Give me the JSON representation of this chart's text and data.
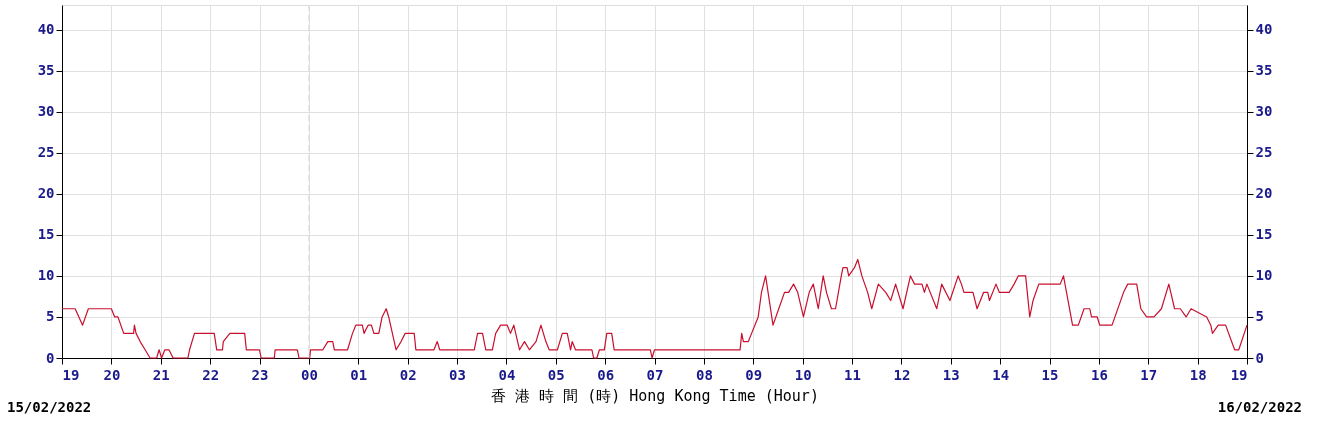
{
  "chart_data": {
    "type": "line",
    "xlabel": "香 港 時 間 (時)  Hong Kong Time (Hour)",
    "annotations": [
      "15/02/2022",
      "16/02/2022"
    ],
    "x": [
      "2022-02-15T19:00",
      "2022-02-15T19:16",
      "2022-02-15T19:25",
      "2022-02-15T19:32",
      "2022-02-15T20:00",
      "2022-02-15T20:04",
      "2022-02-15T20:08",
      "2022-02-15T20:15",
      "2022-02-15T20:27",
      "2022-02-15T20:28",
      "2022-02-15T20:30",
      "2022-02-15T20:35",
      "2022-02-15T20:41",
      "2022-02-15T20:47",
      "2022-02-15T20:55",
      "2022-02-15T20:58",
      "2022-02-15T21:01",
      "2022-02-15T21:05",
      "2022-02-15T21:10",
      "2022-02-15T21:15",
      "2022-02-15T21:33",
      "2022-02-15T21:35",
      "2022-02-15T21:41",
      "2022-02-15T22:05",
      "2022-02-15T22:08",
      "2022-02-15T22:15",
      "2022-02-15T22:16",
      "2022-02-15T22:24",
      "2022-02-15T22:42",
      "2022-02-15T22:44",
      "2022-02-15T23:00",
      "2022-02-15T23:02",
      "2022-02-15T23:18",
      "2022-02-15T23:19",
      "2022-02-15T23:46",
      "2022-02-15T23:48",
      "2022-02-16T00:01",
      "2022-02-16T00:02",
      "2022-02-16T00:17",
      "2022-02-16T00:23",
      "2022-02-16T00:29",
      "2022-02-16T00:31",
      "2022-02-16T00:47",
      "2022-02-16T00:53",
      "2022-02-16T00:57",
      "2022-02-16T01:05",
      "2022-02-16T01:07",
      "2022-02-16T01:12",
      "2022-02-16T01:16",
      "2022-02-16T01:19",
      "2022-02-16T01:25",
      "2022-02-16T01:29",
      "2022-02-16T01:34",
      "2022-02-16T01:37",
      "2022-02-16T01:46",
      "2022-02-16T01:52",
      "2022-02-16T01:57",
      "2022-02-16T02:08",
      "2022-02-16T02:10",
      "2022-02-16T02:32",
      "2022-02-16T02:36",
      "2022-02-16T02:39",
      "2022-02-16T03:21",
      "2022-02-16T03:25",
      "2022-02-16T03:31",
      "2022-02-16T03:35",
      "2022-02-16T03:43",
      "2022-02-16T03:47",
      "2022-02-16T03:53",
      "2022-02-16T04:01",
      "2022-02-16T04:05",
      "2022-02-16T04:09",
      "2022-02-16T04:16",
      "2022-02-16T04:22",
      "2022-02-16T04:28",
      "2022-02-16T04:36",
      "2022-02-16T04:42",
      "2022-02-16T04:48",
      "2022-02-16T04:52",
      "2022-02-16T05:02",
      "2022-02-16T05:08",
      "2022-02-16T05:14",
      "2022-02-16T05:18",
      "2022-02-16T05:20",
      "2022-02-16T05:24",
      "2022-02-16T05:44",
      "2022-02-16T05:46",
      "2022-02-16T05:50",
      "2022-02-16T05:53",
      "2022-02-16T05:59",
      "2022-02-16T06:02",
      "2022-02-16T06:08",
      "2022-02-16T06:11",
      "2022-02-16T06:55",
      "2022-02-16T06:57",
      "2022-02-16T07:00",
      "2022-02-16T08:44",
      "2022-02-16T08:46",
      "2022-02-16T08:48",
      "2022-02-16T08:54",
      "2022-02-16T08:58",
      "2022-02-16T09:06",
      "2022-02-16T09:10",
      "2022-02-16T09:15",
      "2022-02-16T09:24",
      "2022-02-16T09:31",
      "2022-02-16T09:38",
      "2022-02-16T09:43",
      "2022-02-16T09:49",
      "2022-02-16T09:54",
      "2022-02-16T10:01",
      "2022-02-16T10:08",
      "2022-02-16T10:13",
      "2022-02-16T10:19",
      "2022-02-16T10:25",
      "2022-02-16T10:29",
      "2022-02-16T10:35",
      "2022-02-16T10:40",
      "2022-02-16T10:47",
      "2022-02-16T10:49",
      "2022-02-16T10:54",
      "2022-02-16T10:56",
      "2022-02-16T11:03",
      "2022-02-16T11:07",
      "2022-02-16T11:12",
      "2022-02-16T11:19",
      "2022-02-16T11:24",
      "2022-02-16T11:32",
      "2022-02-16T11:41",
      "2022-02-16T11:47",
      "2022-02-16T11:53",
      "2022-02-16T12:02",
      "2022-02-16T12:11",
      "2022-02-16T12:16",
      "2022-02-16T12:25",
      "2022-02-16T12:28",
      "2022-02-16T12:31",
      "2022-02-16T12:43",
      "2022-02-16T12:49",
      "2022-02-16T12:59",
      "2022-02-16T13:09",
      "2022-02-16T13:13",
      "2022-02-16T13:16",
      "2022-02-16T13:27",
      "2022-02-16T13:32",
      "2022-02-16T13:40",
      "2022-02-16T13:45",
      "2022-02-16T13:47",
      "2022-02-16T13:55",
      "2022-02-16T13:59",
      "2022-02-16T14:11",
      "2022-02-16T14:17",
      "2022-02-16T14:22",
      "2022-02-16T14:31",
      "2022-02-16T14:36",
      "2022-02-16T14:40",
      "2022-02-16T14:47",
      "2022-02-16T14:54",
      "2022-02-16T15:13",
      "2022-02-16T15:17",
      "2022-02-16T15:28",
      "2022-02-16T15:35",
      "2022-02-16T15:42",
      "2022-02-16T15:49",
      "2022-02-16T15:51",
      "2022-02-16T15:58",
      "2022-02-16T16:01",
      "2022-02-16T16:16",
      "2022-02-16T16:30",
      "2022-02-16T16:35",
      "2022-02-16T16:46",
      "2022-02-16T16:51",
      "2022-02-16T16:58",
      "2022-02-16T17:07",
      "2022-02-16T17:16",
      "2022-02-16T17:25",
      "2022-02-16T17:32",
      "2022-02-16T17:39",
      "2022-02-16T17:46",
      "2022-02-16T17:52",
      "2022-02-16T18:11",
      "2022-02-16T18:16",
      "2022-02-16T18:18",
      "2022-02-16T18:25",
      "2022-02-16T18:34",
      "2022-02-16T18:45",
      "2022-02-16T18:50",
      "2022-02-16T19:00"
    ],
    "series": [
      {
        "color": "#c8102e",
        "values": [
          6,
          6,
          4,
          6,
          6,
          5,
          5,
          3,
          3,
          4,
          3,
          2,
          1,
          0,
          0,
          1,
          0,
          1,
          1,
          0,
          0,
          1,
          3,
          3,
          1,
          1,
          2,
          3,
          3,
          1,
          1,
          0,
          0,
          1,
          1,
          0,
          0,
          1,
          1,
          2,
          2,
          1,
          1,
          3,
          4,
          4,
          3,
          4,
          4,
          3,
          3,
          5,
          6,
          5,
          1,
          2,
          3,
          3,
          1,
          1,
          2,
          1,
          1,
          3,
          3,
          1,
          1,
          3,
          4,
          4,
          3,
          4,
          1,
          2,
          1,
          2,
          4,
          2,
          1,
          1,
          3,
          3,
          1,
          2,
          1,
          1,
          0,
          0,
          1,
          1,
          3,
          3,
          1,
          1,
          0,
          1,
          1,
          3,
          2,
          2,
          3,
          5,
          8,
          10,
          4,
          6,
          8,
          8,
          9,
          8,
          5,
          8,
          9,
          6,
          10,
          8,
          6,
          6,
          10,
          11,
          11,
          10,
          11,
          12,
          10,
          8,
          6,
          9,
          8,
          7,
          9,
          6,
          10,
          9,
          9,
          8,
          9,
          6,
          9,
          7,
          10,
          9,
          8,
          8,
          6,
          8,
          8,
          7,
          9,
          8,
          8,
          9,
          10,
          10,
          5,
          7,
          9,
          9,
          9,
          10,
          4,
          4,
          6,
          6,
          5,
          5,
          4,
          4,
          8,
          9,
          9,
          6,
          5,
          5,
          6,
          9,
          6,
          6,
          5,
          6,
          5,
          4,
          3,
          4,
          4,
          1,
          1,
          4
        ]
      }
    ],
    "xlim": [
      "2022-02-15T19:00",
      "2022-02-16T19:00"
    ],
    "xticks": [
      {
        "value": "2022-02-15T19:00",
        "label": "19"
      },
      {
        "value": "2022-02-15T20:00",
        "label": "20"
      },
      {
        "value": "2022-02-15T21:00",
        "label": "21"
      },
      {
        "value": "2022-02-15T22:00",
        "label": "22"
      },
      {
        "value": "2022-02-15T23:00",
        "label": "23"
      },
      {
        "value": "2022-02-16T00:00",
        "label": "00"
      },
      {
        "value": "2022-02-16T01:00",
        "label": "01"
      },
      {
        "value": "2022-02-16T02:00",
        "label": "02"
      },
      {
        "value": "2022-02-16T03:00",
        "label": "03"
      },
      {
        "value": "2022-02-16T04:00",
        "label": "04"
      },
      {
        "value": "2022-02-16T05:00",
        "label": "05"
      },
      {
        "value": "2022-02-16T06:00",
        "label": "06"
      },
      {
        "value": "2022-02-16T07:00",
        "label": "07"
      },
      {
        "value": "2022-02-16T08:00",
        "label": "08"
      },
      {
        "value": "2022-02-16T09:00",
        "label": "09"
      },
      {
        "value": "2022-02-16T10:00",
        "label": "10"
      },
      {
        "value": "2022-02-16T11:00",
        "label": "11"
      },
      {
        "value": "2022-02-16T12:00",
        "label": "12"
      },
      {
        "value": "2022-02-16T13:00",
        "label": "13"
      },
      {
        "value": "2022-02-16T14:00",
        "label": "14"
      },
      {
        "value": "2022-02-16T15:00",
        "label": "15"
      },
      {
        "value": "2022-02-16T16:00",
        "label": "16"
      },
      {
        "value": "2022-02-16T17:00",
        "label": "17"
      },
      {
        "value": "2022-02-16T18:00",
        "label": "18"
      },
      {
        "value": "2022-02-16T19:00",
        "label": "19"
      }
    ],
    "ylim": [
      0,
      43
    ],
    "yticks": [
      0,
      5,
      10,
      15,
      20,
      25,
      30,
      35,
      40
    ],
    "y2lim": [
      0,
      43
    ],
    "y2ticks": [
      0,
      5,
      10,
      15,
      20,
      25,
      30,
      35,
      40
    ],
    "ref_lines": [
      {
        "axis": "x",
        "value": "2022-02-16T00:00",
        "color": "#d8d8d8",
        "line_style": "dashed"
      }
    ],
    "grid": true,
    "marker": "none",
    "line_style": "solid"
  }
}
